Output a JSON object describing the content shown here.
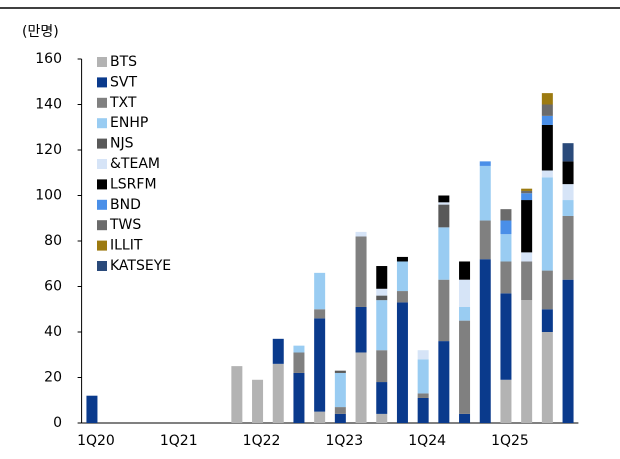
{
  "chart_data": {
    "type": "stacked_bar",
    "unit_label": "(만명)",
    "categories": [
      "1Q20",
      null,
      null,
      null,
      "1Q21",
      null,
      null,
      null,
      "1Q22",
      null,
      null,
      null,
      "1Q23",
      null,
      null,
      null,
      "1Q24",
      null,
      null,
      null,
      "1Q25",
      null,
      null,
      null
    ],
    "series": [
      {
        "name": "BTS",
        "color": "#b3b3b3",
        "values": [
          null,
          null,
          null,
          null,
          null,
          null,
          null,
          25,
          19,
          26,
          null,
          5,
          null,
          31,
          4,
          null,
          null,
          null,
          null,
          null,
          19,
          54,
          40,
          null
        ]
      },
      {
        "name": "SVT",
        "color": "#0a3a8c",
        "values": [
          12,
          null,
          null,
          null,
          null,
          null,
          null,
          null,
          null,
          11,
          22,
          41,
          4,
          20,
          14,
          53,
          11,
          36,
          4,
          72,
          38,
          null,
          10,
          63
        ]
      },
      {
        "name": "TXT",
        "color": "#808080",
        "values": [
          null,
          null,
          null,
          null,
          null,
          null,
          null,
          null,
          null,
          null,
          9,
          4,
          3,
          31,
          14,
          5,
          2,
          27,
          41,
          17,
          14,
          17,
          17,
          28
        ]
      },
      {
        "name": "ENHP",
        "color": "#99ccf2",
        "values": [
          null,
          null,
          null,
          null,
          null,
          null,
          null,
          null,
          null,
          null,
          3,
          16,
          15,
          null,
          22,
          13,
          15,
          23,
          6,
          24,
          12,
          null,
          41,
          7
        ]
      },
      {
        "name": "NJS",
        "color": "#595959",
        "values": [
          null,
          null,
          null,
          null,
          null,
          null,
          null,
          null,
          null,
          null,
          null,
          null,
          1,
          null,
          2,
          null,
          null,
          10,
          null,
          null,
          null,
          null,
          null,
          null
        ]
      },
      {
        "name": "&TEAM",
        "color": "#d6e4f7",
        "values": [
          null,
          null,
          null,
          null,
          null,
          null,
          null,
          null,
          null,
          null,
          null,
          null,
          null,
          2,
          3,
          null,
          4,
          1,
          12,
          null,
          null,
          4,
          3,
          7
        ]
      },
      {
        "name": "LSRFM",
        "color": "#000000",
        "values": [
          null,
          null,
          null,
          null,
          null,
          null,
          null,
          null,
          null,
          null,
          null,
          null,
          null,
          null,
          10,
          2,
          null,
          3,
          8,
          null,
          null,
          23,
          20,
          10
        ]
      },
      {
        "name": "BND",
        "color": "#4a8fe8",
        "values": [
          null,
          null,
          null,
          null,
          null,
          null,
          null,
          null,
          null,
          null,
          null,
          null,
          null,
          null,
          null,
          null,
          null,
          null,
          null,
          2,
          6,
          3,
          4,
          null
        ]
      },
      {
        "name": "TWS",
        "color": "#6b6b6b",
        "values": [
          null,
          null,
          null,
          null,
          null,
          null,
          null,
          null,
          null,
          null,
          null,
          null,
          null,
          null,
          null,
          null,
          null,
          null,
          null,
          null,
          5,
          1,
          5,
          null
        ]
      },
      {
        "name": "ILLIT",
        "color": "#9c7a10",
        "values": [
          null,
          null,
          null,
          null,
          null,
          null,
          null,
          null,
          null,
          null,
          null,
          null,
          null,
          null,
          null,
          null,
          null,
          null,
          null,
          null,
          null,
          1,
          5,
          null
        ]
      },
      {
        "name": "KATSEYE",
        "color": "#2a4a7a",
        "values": [
          null,
          null,
          null,
          null,
          null,
          null,
          null,
          null,
          null,
          null,
          null,
          null,
          null,
          null,
          null,
          null,
          null,
          null,
          null,
          null,
          null,
          null,
          null,
          8
        ]
      }
    ],
    "ylim": [
      0,
      160
    ],
    "yticks": [
      0,
      20,
      40,
      60,
      80,
      100,
      120,
      140,
      160
    ],
    "legend": "upper left"
  }
}
